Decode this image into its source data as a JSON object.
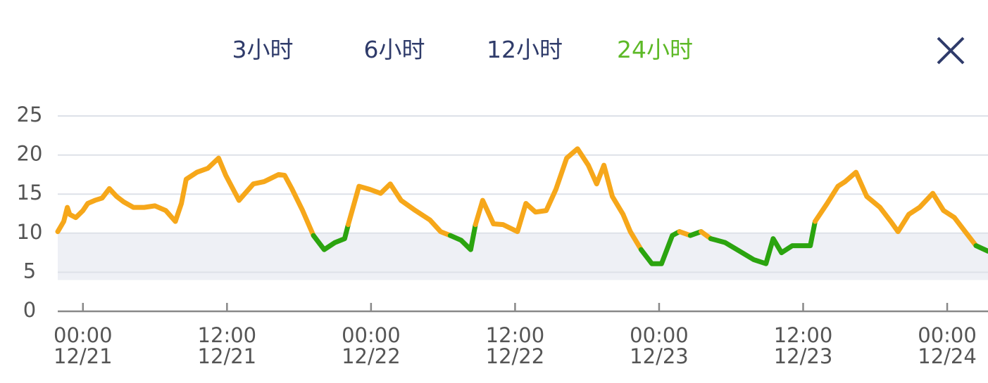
{
  "tabs": [
    "3小时",
    "6小时",
    "12小时",
    "24小时"
  ],
  "selected_tab_index": 3,
  "chart_data": {
    "type": "line",
    "x": [
      -2.1,
      -1.6,
      -1.3,
      -1.1,
      -0.6,
      0,
      0.4,
      1,
      1.6,
      2.2,
      2.8,
      3.4,
      4.2,
      5.1,
      6,
      6.9,
      7.7,
      8.2,
      8.6,
      9.5,
      10.4,
      11.3,
      11.9,
      13,
      14.2,
      15.1,
      16.3,
      16.8,
      17.4,
      18.3,
      19.2,
      20.1,
      21,
      21.8,
      22.1,
      23,
      23.9,
      24.8,
      25.6,
      26.5,
      27.7,
      28.9,
      29.8,
      30.6,
      31.5,
      32.3,
      32.7,
      33.3,
      34.2,
      35,
      36.2,
      36.9,
      37.7,
      38.6,
      39.4,
      40.3,
      41.2,
      42.1,
      42.8,
      43.4,
      44.1,
      45,
      45.6,
      46.5,
      47.4,
      48.2,
      49.1,
      49.7,
      50.6,
      51.5,
      52.3,
      53.5,
      54.7,
      55.9,
      56.9,
      57.5,
      58.2,
      59.1,
      60,
      60.6,
      61,
      62,
      62.9,
      63.5,
      64.4,
      65.3,
      66.4,
      67.3,
      67.9,
      68.8,
      69.7,
      70.8,
      71.7,
      72.6,
      73.5,
      74.4,
      75.4
    ],
    "values": [
      10.2,
      11.5,
      13.3,
      12.4,
      12,
      12.9,
      13.8,
      14.2,
      14.5,
      15.7,
      14.7,
      14,
      13.3,
      13.3,
      13.5,
      12.9,
      11.5,
      13.8,
      16.9,
      17.8,
      18.3,
      19.6,
      17.4,
      14.2,
      16.3,
      16.6,
      17.5,
      17.4,
      15.7,
      12.9,
      9.7,
      7.9,
      8.8,
      9.3,
      11.1,
      16,
      15.6,
      15.1,
      16.3,
      14.2,
      12.9,
      11.7,
      10.2,
      9.7,
      9.1,
      7.9,
      11.1,
      14.2,
      11.2,
      11.1,
      10.2,
      13.8,
      12.7,
      12.9,
      15.6,
      19.6,
      20.8,
      18.7,
      16.3,
      18.7,
      14.7,
      12.4,
      10.2,
      7.9,
      6.1,
      6.1,
      9.7,
      10.2,
      9.7,
      10.2,
      9.3,
      8.8,
      7.7,
      6.6,
      6.1,
      9.3,
      7.5,
      8.4,
      8.4,
      8.4,
      11.5,
      13.8,
      16,
      16.6,
      17.8,
      14.7,
      13.3,
      11.5,
      10.2,
      12.4,
      13.3,
      15.1,
      12.9,
      12,
      10.2,
      8.4,
      7.7
    ],
    "colors": {
      "above": "#f6a71a",
      "within": "#2ba40f"
    },
    "target_range": [
      4,
      10
    ],
    "band_color": "#eef0f5",
    "xlim": [
      -2.1,
      75.4
    ],
    "xticks": [
      {
        "value": 0,
        "label": "00:00\n12/21"
      },
      {
        "value": 12,
        "label": "12:00\n12/21"
      },
      {
        "value": 24,
        "label": "00:00\n12/22"
      },
      {
        "value": 36,
        "label": "12:00\n12/22"
      },
      {
        "value": 48,
        "label": "00:00\n12/23"
      },
      {
        "value": 60,
        "label": "12:00\n12/23"
      },
      {
        "value": 72,
        "label": "00:00\n12/24"
      }
    ],
    "ylim": [
      0,
      25
    ],
    "yticks": [
      0,
      5,
      10,
      15,
      20,
      25
    ],
    "grid": true
  }
}
